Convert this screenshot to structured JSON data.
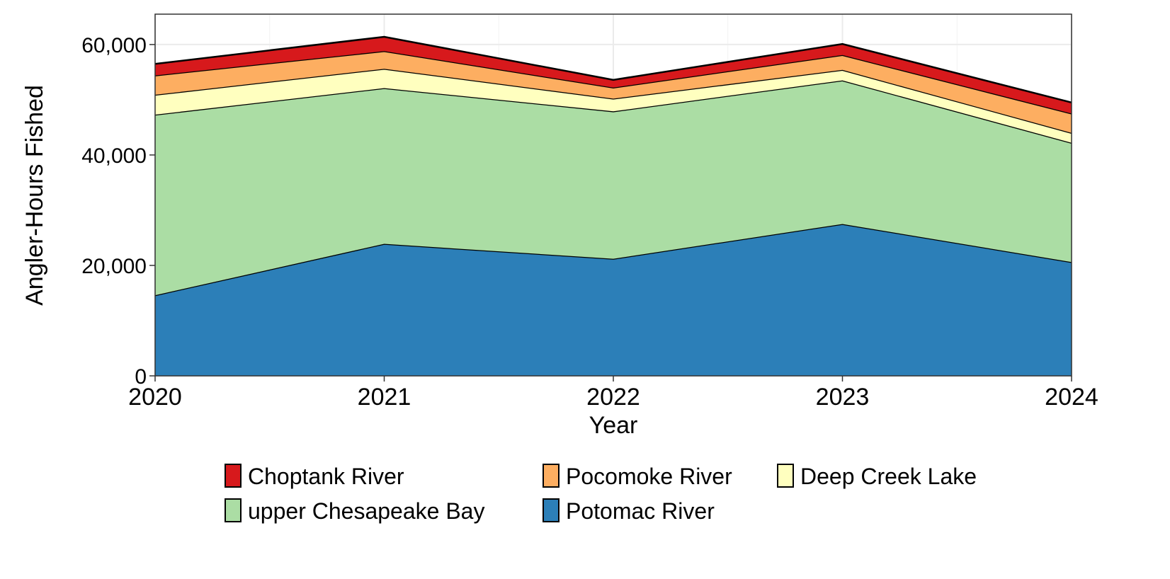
{
  "chart_data": {
    "type": "area",
    "stacked": true,
    "title": "",
    "xlabel": "Year",
    "ylabel": "Angler-Hours Fished",
    "x": [
      2020,
      2021,
      2022,
      2023,
      2024
    ],
    "x_tick_labels": [
      "2020",
      "2021",
      "2022",
      "2023",
      "2024"
    ],
    "ylim": [
      0,
      65500
    ],
    "y_ticks": [
      0,
      20000,
      40000,
      60000
    ],
    "y_tick_labels": [
      "0",
      "20,000",
      "40,000",
      "60,000"
    ],
    "grid": true,
    "legend_position": "bottom",
    "series": [
      {
        "name": "Potomac River",
        "color": "#2c7fb8",
        "values": [
          14600,
          23900,
          21200,
          27500,
          20600
        ]
      },
      {
        "name": "upper Chesapeake Bay",
        "color": "#abdda4",
        "values": [
          32700,
          28200,
          26700,
          26000,
          21600
        ]
      },
      {
        "name": "Deep Creek Lake",
        "color": "#ffffbf",
        "values": [
          3600,
          3500,
          2300,
          1900,
          1800
        ]
      },
      {
        "name": "Pocomoke River",
        "color": "#fdae61",
        "values": [
          3500,
          3200,
          2000,
          2700,
          3500
        ]
      },
      {
        "name": "Choptank River",
        "color": "#d7191c",
        "values": [
          2100,
          2600,
          1400,
          2000,
          2000
        ]
      }
    ],
    "legend_order": [
      "Choptank River",
      "Pocomoke River",
      "Deep Creek Lake",
      "upper Chesapeake Bay",
      "Potomac River"
    ]
  }
}
